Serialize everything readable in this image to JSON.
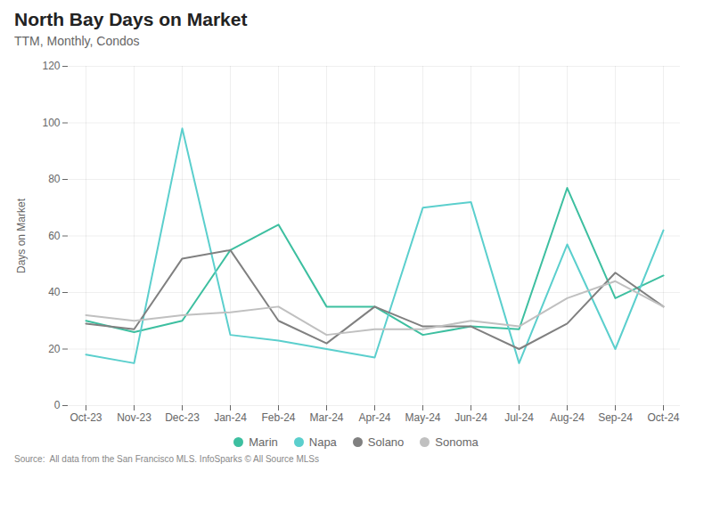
{
  "chart_data": {
    "type": "line",
    "title": "North Bay Days on Market",
    "subtitle": "TTM, Monthly, Condos",
    "ylabel": "Days on Market",
    "source": "Source:  All data from the San Francisco MLS. InfoSparks © All Source MLSs",
    "categories": [
      "Oct-23",
      "Nov-23",
      "Dec-23",
      "Jan-24",
      "Feb-24",
      "Mar-24",
      "Apr-24",
      "May-24",
      "Jun-24",
      "Jul-24",
      "Aug-24",
      "Sep-24",
      "Oct-24"
    ],
    "series": [
      {
        "name": "Marin",
        "color": "#3dbfa0",
        "values": [
          30,
          26,
          30,
          55,
          64,
          35,
          35,
          25,
          28,
          27,
          77,
          38,
          46
        ]
      },
      {
        "name": "Napa",
        "color": "#5bcfcd",
        "values": [
          18,
          15,
          98,
          25,
          23,
          20,
          17,
          70,
          72,
          15,
          57,
          20,
          62
        ]
      },
      {
        "name": "Solano",
        "color": "#808080",
        "values": [
          29,
          27,
          52,
          55,
          30,
          22,
          35,
          28,
          28,
          20,
          29,
          47,
          35
        ]
      },
      {
        "name": "Sonoma",
        "color": "#c0c0c0",
        "values": [
          32,
          30,
          32,
          33,
          35,
          25,
          27,
          27,
          30,
          28,
          38,
          44,
          35
        ]
      }
    ],
    "ylim": [
      0,
      120
    ],
    "yticks": [
      0,
      20,
      40,
      60,
      80,
      100,
      120
    ],
    "grid": true,
    "legend": "bottom"
  }
}
